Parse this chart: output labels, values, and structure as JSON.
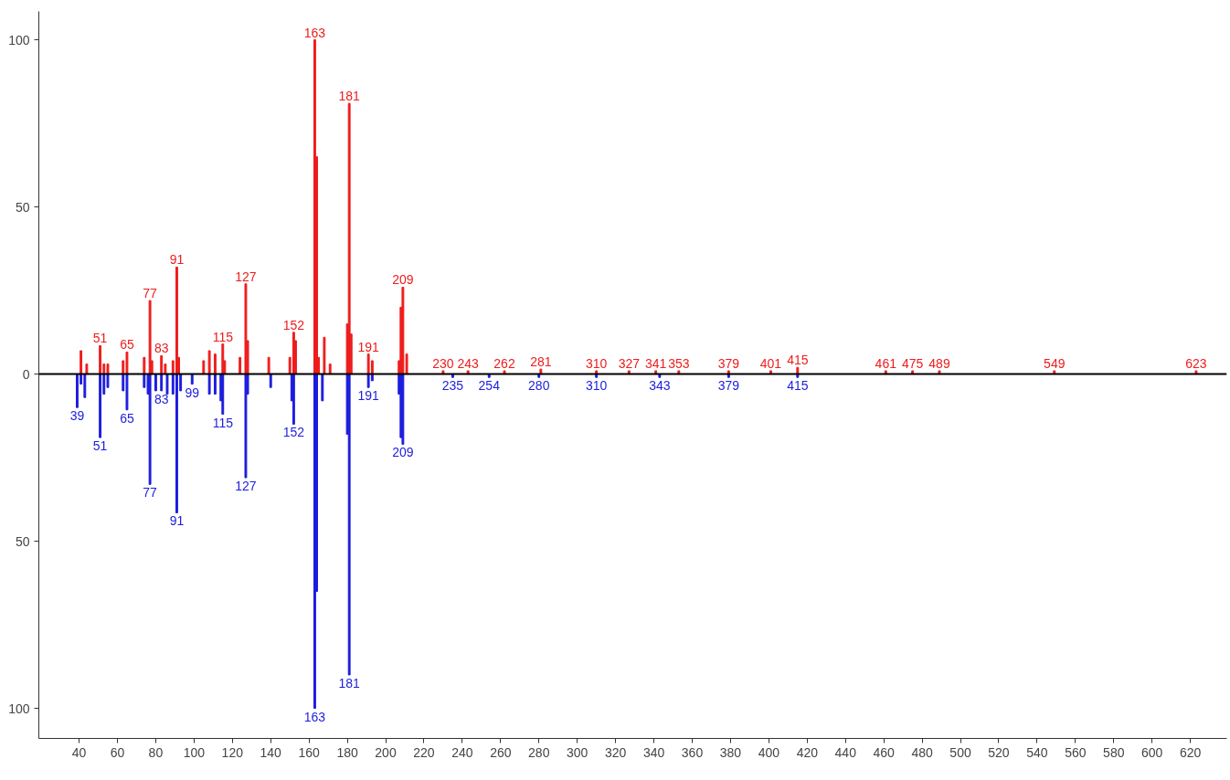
{
  "chart_data": {
    "type": "bar",
    "xlim": [
      19,
      639
    ],
    "xticks": [
      40,
      60,
      80,
      100,
      120,
      140,
      160,
      180,
      200,
      220,
      240,
      260,
      280,
      300,
      320,
      340,
      360,
      380,
      400,
      420,
      440,
      460,
      480,
      500,
      520,
      540,
      560,
      580,
      600,
      620
    ],
    "ylim": [
      -109,
      108.5
    ],
    "yticks": [
      {
        "value": -100,
        "label": "100"
      },
      {
        "value": -50,
        "label": "50"
      },
      0,
      50,
      100
    ],
    "grid": false,
    "ref_lines": [
      {
        "axis": "y",
        "value": 0,
        "color": "#000000"
      }
    ],
    "series": [
      {
        "color": "#ee1c1c",
        "x": [
          41,
          44,
          51,
          53,
          55,
          63,
          65,
          74,
          77,
          78,
          83,
          85,
          89,
          91,
          92,
          105,
          108,
          111,
          115,
          116,
          124,
          127,
          128,
          139,
          150,
          152,
          153,
          163,
          164,
          165,
          168,
          171,
          180,
          181,
          182,
          191,
          193,
          207,
          208,
          209,
          211,
          230,
          243,
          262,
          281,
          310,
          327,
          341,
          353,
          379,
          401,
          415,
          461,
          475,
          489,
          549,
          623
        ],
        "values": [
          7,
          3,
          8.5,
          3,
          3,
          4,
          6.6,
          5,
          22,
          4,
          5.5,
          3,
          4,
          32,
          5,
          4,
          7,
          6,
          9,
          4,
          5,
          27,
          10,
          5,
          5,
          12.5,
          10,
          100,
          65,
          5,
          11,
          3,
          15,
          81,
          12,
          6,
          4,
          4,
          20,
          26,
          6,
          1,
          1,
          1,
          1.5,
          1,
          1,
          1,
          1,
          1,
          1,
          2,
          1,
          1,
          1,
          1,
          1
        ]
      },
      {
        "color": "#1c1cdd",
        "x": [
          39,
          41,
          43,
          51,
          53,
          55,
          63,
          65,
          74,
          76,
          77,
          80,
          83,
          86,
          89,
          91,
          93,
          99,
          108,
          111,
          114,
          115,
          127,
          128,
          140,
          151,
          152,
          163,
          164,
          167,
          180,
          181,
          191,
          193,
          207,
          208,
          209,
          235,
          254,
          280,
          310,
          343,
          379,
          415
        ],
        "values": [
          -10,
          -3,
          -7,
          -19,
          -6,
          -4,
          -5,
          -10.7,
          -4,
          -6,
          -33,
          -5,
          -5,
          -6,
          -6,
          -41.5,
          -5,
          -3,
          -6,
          -6,
          -8,
          -12,
          -31,
          -6,
          -4,
          -8,
          -15,
          -100,
          -65,
          -8,
          -18,
          -90,
          -4,
          -2,
          -6,
          -19,
          -21,
          -1,
          -1,
          -1,
          -1,
          -1,
          -1,
          -1
        ]
      }
    ],
    "annotations": [
      {
        "text": "51",
        "x": 51,
        "y": 8.5
      },
      {
        "text": "65",
        "x": 65,
        "y": 6.6
      },
      {
        "text": "77",
        "x": 77,
        "y": 22
      },
      {
        "text": "83",
        "x": 83,
        "y": 5.5
      },
      {
        "text": "91",
        "x": 91,
        "y": 32
      },
      {
        "text": "115",
        "x": 115,
        "y": 9
      },
      {
        "text": "127",
        "x": 127,
        "y": 27
      },
      {
        "text": "152",
        "x": 152,
        "y": 12.5
      },
      {
        "text": "163",
        "x": 163,
        "y": 100
      },
      {
        "text": "181",
        "x": 181,
        "y": 81
      },
      {
        "text": "191",
        "x": 191,
        "y": 6
      },
      {
        "text": "209",
        "x": 209,
        "y": 26
      },
      {
        "text": "230",
        "x": 230,
        "y": 1
      },
      {
        "text": "243",
        "x": 243,
        "y": 1
      },
      {
        "text": "262",
        "x": 262,
        "y": 1
      },
      {
        "text": "281",
        "x": 281,
        "y": 1.5
      },
      {
        "text": "310",
        "x": 310,
        "y": 1
      },
      {
        "text": "327",
        "x": 327,
        "y": 1
      },
      {
        "text": "341",
        "x": 341,
        "y": 1
      },
      {
        "text": "353",
        "x": 353,
        "y": 1
      },
      {
        "text": "379",
        "x": 379,
        "y": 1
      },
      {
        "text": "401",
        "x": 401,
        "y": 1
      },
      {
        "text": "415",
        "x": 415,
        "y": 2
      },
      {
        "text": "461",
        "x": 461,
        "y": 1
      },
      {
        "text": "475",
        "x": 475,
        "y": 1
      },
      {
        "text": "489",
        "x": 489,
        "y": 1
      },
      {
        "text": "549",
        "x": 549,
        "y": 1
      },
      {
        "text": "623",
        "x": 623,
        "y": 1
      },
      {
        "text": "39",
        "x": 39,
        "y": -10
      },
      {
        "text": "51",
        "x": 51,
        "y": -19
      },
      {
        "text": "65",
        "x": 65,
        "y": -10.7
      },
      {
        "text": "77",
        "x": 77,
        "y": -33
      },
      {
        "text": "83",
        "x": 83,
        "y": -5
      },
      {
        "text": "91",
        "x": 91,
        "y": -41.5
      },
      {
        "text": "99",
        "x": 99,
        "y": -3
      },
      {
        "text": "115",
        "x": 115,
        "y": -12
      },
      {
        "text": "127",
        "x": 127,
        "y": -31
      },
      {
        "text": "152",
        "x": 152,
        "y": -15
      },
      {
        "text": "163",
        "x": 163,
        "y": -100
      },
      {
        "text": "181",
        "x": 181,
        "y": -90
      },
      {
        "text": "191",
        "x": 191,
        "y": -4
      },
      {
        "text": "209",
        "x": 209,
        "y": -21
      },
      {
        "text": "235",
        "x": 235,
        "y": -1
      },
      {
        "text": "254",
        "x": 254,
        "y": -1
      },
      {
        "text": "280",
        "x": 280,
        "y": -1
      },
      {
        "text": "310",
        "x": 310,
        "y": -1
      },
      {
        "text": "343",
        "x": 343,
        "y": -1
      },
      {
        "text": "379",
        "x": 379,
        "y": -1
      },
      {
        "text": "415",
        "x": 415,
        "y": -1
      }
    ]
  }
}
